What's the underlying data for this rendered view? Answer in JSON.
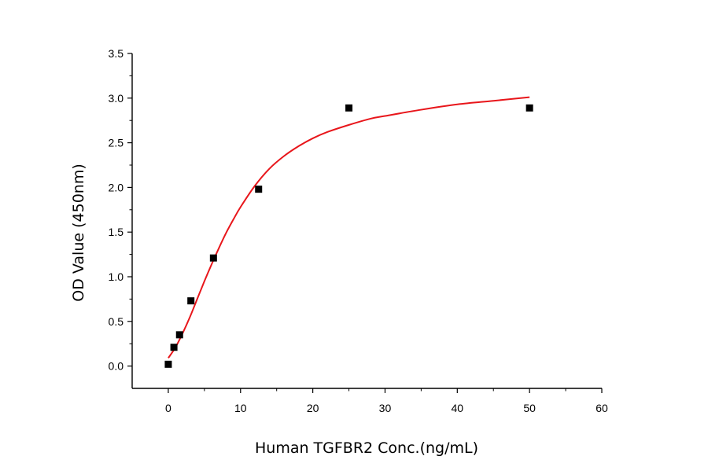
{
  "chart_data": {
    "type": "scatter",
    "title": "",
    "xlabel": "Human TGFBR2 Conc.(ng/mL)",
    "ylabel": "OD Value (450nm)",
    "xlim": [
      -5,
      60
    ],
    "ylim": [
      -0.25,
      3.5
    ],
    "x_ticks": [
      0,
      10,
      20,
      30,
      40,
      50,
      60
    ],
    "y_ticks": [
      0.0,
      0.5,
      1.0,
      1.5,
      2.0,
      2.5,
      3.0,
      3.5
    ],
    "x_tick_labels": [
      "0",
      "10",
      "20",
      "30",
      "40",
      "50",
      "60"
    ],
    "y_tick_labels": [
      "0.0",
      "0.5",
      "1.0",
      "1.5",
      "2.0",
      "2.5",
      "3.0",
      "3.5"
    ],
    "grid": false,
    "legend": "none",
    "series": [
      {
        "kind": "points",
        "marker": "square",
        "color": "#000000",
        "x": [
          0,
          0.78,
          1.56,
          3.13,
          6.25,
          12.5,
          25,
          50
        ],
        "y": [
          0.02,
          0.21,
          0.35,
          0.73,
          1.21,
          1.98,
          2.89,
          2.89
        ]
      },
      {
        "kind": "fit-curve",
        "color": "#e8161b",
        "x": [
          0,
          1,
          2,
          3,
          4,
          5,
          6,
          7,
          8,
          9,
          10,
          12,
          14,
          16,
          18,
          20,
          22,
          25,
          28,
          30,
          35,
          40,
          45,
          50
        ],
        "y": [
          0.09,
          0.21,
          0.37,
          0.55,
          0.75,
          0.95,
          1.14,
          1.32,
          1.49,
          1.64,
          1.78,
          2.02,
          2.21,
          2.35,
          2.46,
          2.55,
          2.62,
          2.7,
          2.77,
          2.8,
          2.87,
          2.93,
          2.97,
          3.01
        ]
      }
    ]
  }
}
